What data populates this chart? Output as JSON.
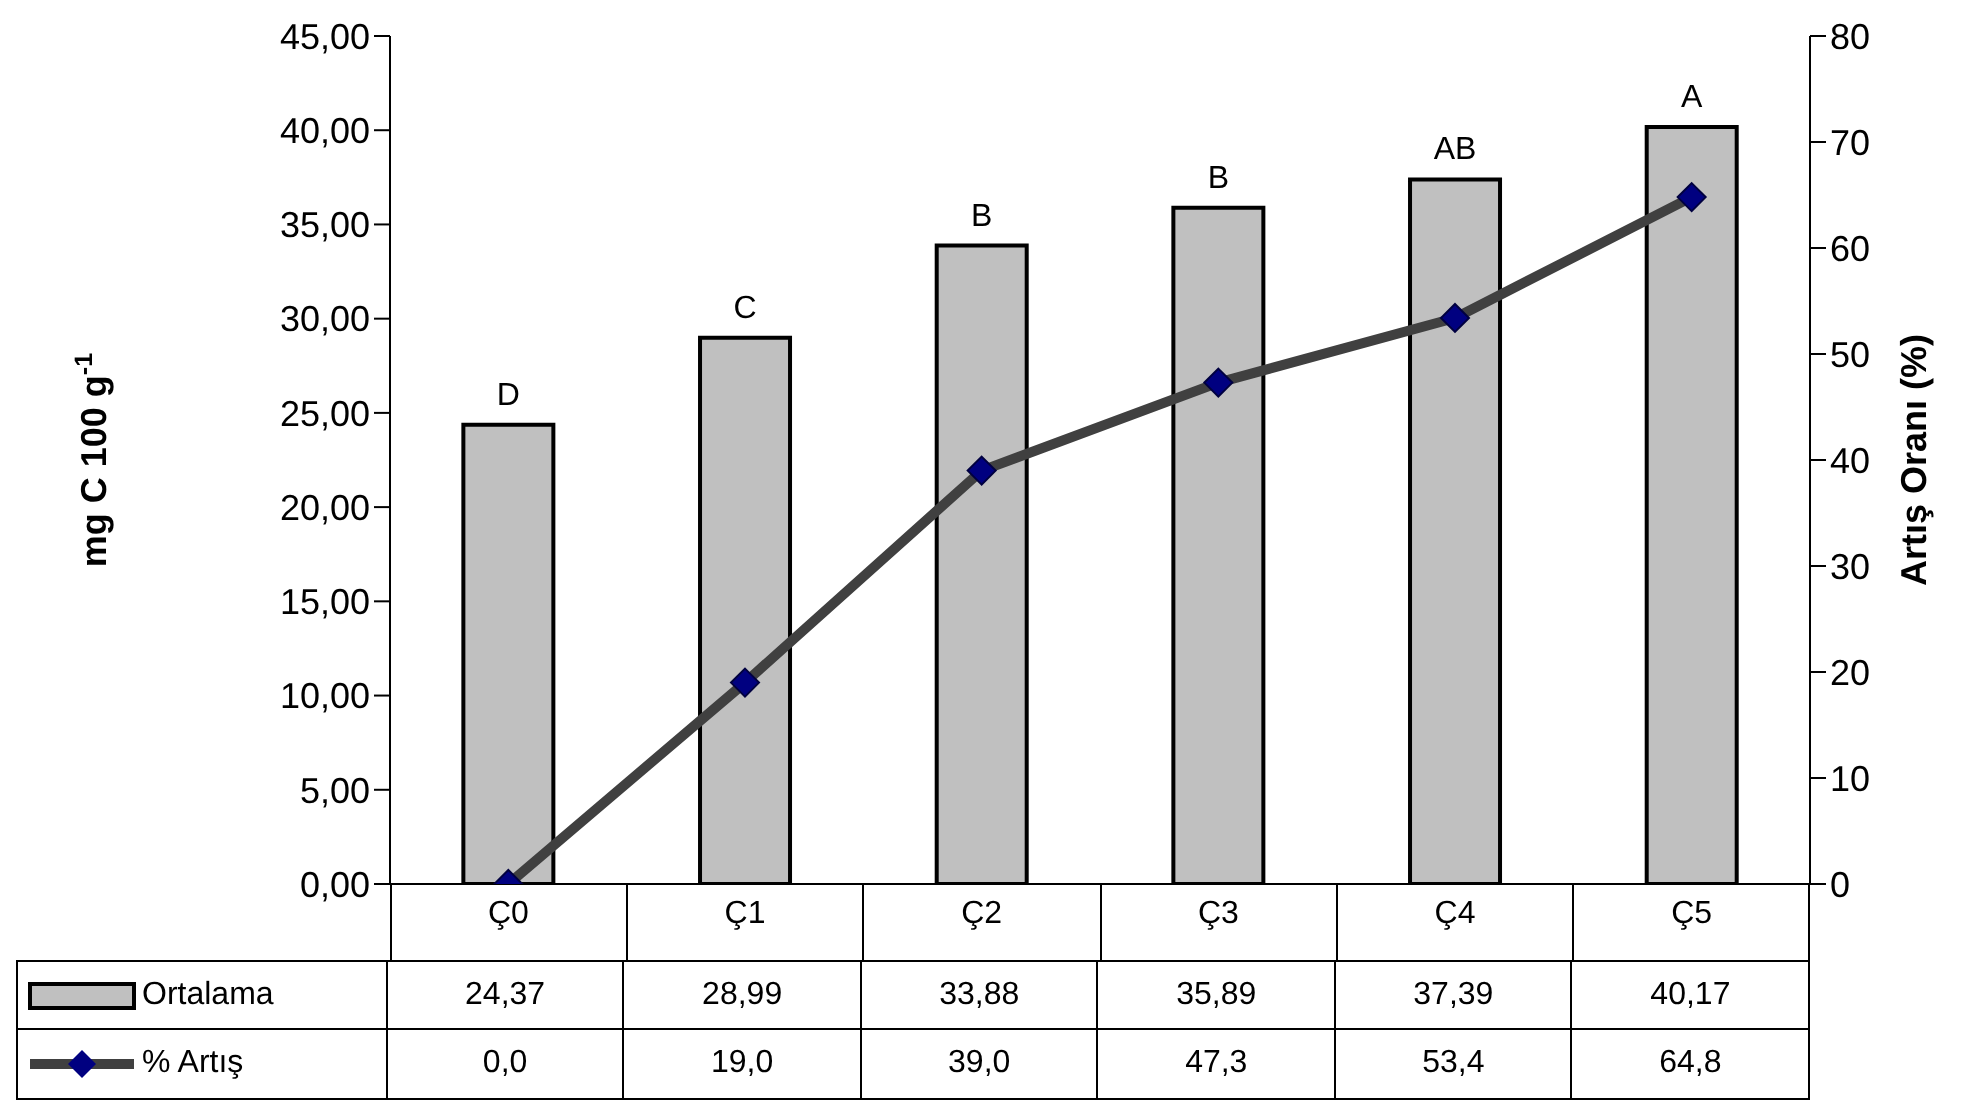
{
  "chart_data": {
    "type": "bar",
    "categories": [
      "Ç0",
      "Ç1",
      "Ç2",
      "Ç3",
      "Ç4",
      "Ç5"
    ],
    "ylabel": "mg C 100 g$^{-1}$",
    "y2label": "Artış Oranı (%)",
    "ylim": [
      0,
      45
    ],
    "yticks": [
      {
        "value": 0,
        "label": "0,00"
      },
      {
        "value": 5,
        "label": "5,00"
      },
      {
        "value": 10,
        "label": "10,00"
      },
      {
        "value": 15,
        "label": "15,00"
      },
      {
        "value": 20,
        "label": "20,00"
      },
      {
        "value": 25,
        "label": "25,00"
      },
      {
        "value": 30,
        "label": "30,00"
      },
      {
        "value": 35,
        "label": "35,00"
      },
      {
        "value": 40,
        "label": "40,00"
      },
      {
        "value": 45,
        "label": "45,00"
      }
    ],
    "y2lim": [
      0,
      80
    ],
    "y2ticks": [
      0,
      10,
      20,
      30,
      40,
      50,
      60,
      70,
      80
    ],
    "series": [
      {
        "name": "Ortalama",
        "color": "#c0c0c0",
        "values": [
          24.37,
          28.99,
          33.88,
          35.89,
          37.39,
          40.17
        ],
        "value_labels": [
          "24,37",
          "28,99",
          "33,88",
          "35,89",
          "37,39",
          "40,17"
        ]
      },
      {
        "name": "% Artış",
        "type": "line",
        "axis": "y2",
        "color": "#404040",
        "marker": "diamond",
        "values": [
          0.0,
          19.0,
          39.0,
          47.3,
          53.4,
          64.8
        ],
        "value_labels": [
          "0,0",
          "19,0",
          "39,0",
          "47,3",
          "53,4",
          "64,8"
        ]
      }
    ],
    "annotations": [
      {
        "text": "D",
        "x": "Ç0",
        "y": 24.37
      },
      {
        "text": "C",
        "x": "Ç1",
        "y": 28.99
      },
      {
        "text": "B",
        "x": "Ç2",
        "y": 33.88
      },
      {
        "text": "B",
        "x": "Ç3",
        "y": 35.89
      },
      {
        "text": "AB",
        "x": "Ç4",
        "y": 37.39
      },
      {
        "text": "A",
        "x": "Ç5",
        "y": 40.17
      }
    ],
    "grid": false,
    "legend": "bottom"
  }
}
